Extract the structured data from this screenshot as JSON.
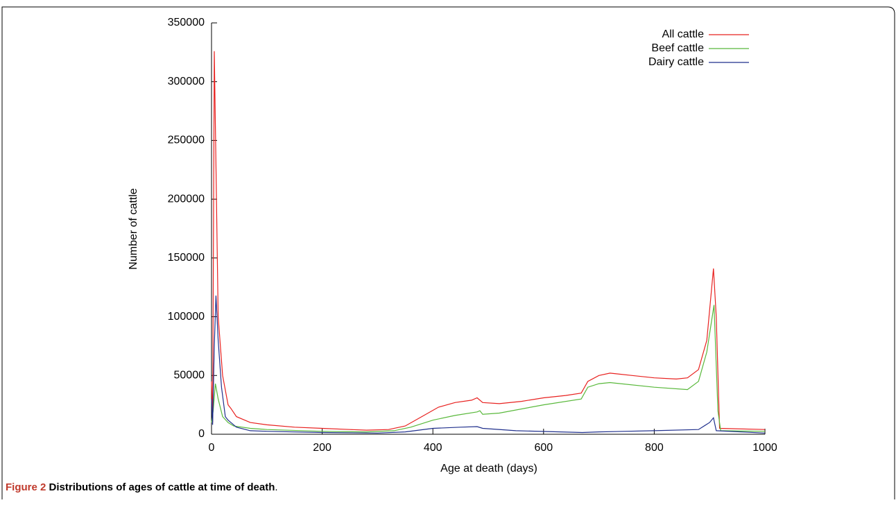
{
  "chart_data": {
    "type": "line",
    "xlabel": "Age at death (days)",
    "ylabel": "Number of cattle",
    "caption_label": "Figure 2",
    "caption_text": "Distributions of ages of cattle at time of death",
    "caption_end": ".",
    "xlim": [
      0,
      1000
    ],
    "ylim": [
      0,
      350000
    ],
    "xticks": [
      0,
      200,
      400,
      600,
      800,
      1000
    ],
    "yticks": [
      0,
      50000,
      100000,
      150000,
      200000,
      250000,
      300000,
      350000
    ],
    "legend": "upper right",
    "series": [
      {
        "name": "All cattle",
        "color": "#e8201e",
        "x": [
          0,
          2,
          5,
          12,
          20,
          30,
          35,
          45,
          70,
          100,
          150,
          200,
          250,
          280,
          320,
          350,
          380,
          410,
          440,
          470,
          480,
          490,
          520,
          560,
          600,
          640,
          668,
          680,
          700,
          720,
          760,
          800,
          840,
          860,
          880,
          895,
          907,
          912,
          918,
          1000
        ],
        "values": [
          45000,
          10000,
          326000,
          100000,
          50000,
          25000,
          22000,
          15000,
          10000,
          8000,
          6000,
          5000,
          4000,
          3500,
          4000,
          7000,
          15000,
          23000,
          27000,
          29000,
          31000,
          27000,
          26000,
          28000,
          31000,
          33000,
          35000,
          45000,
          50000,
          52000,
          50000,
          48000,
          47000,
          48000,
          55000,
          80000,
          141000,
          100000,
          5000,
          4000
        ]
      },
      {
        "name": "Beef cattle",
        "color": "#58b83a",
        "x": [
          0,
          3,
          7,
          12,
          20,
          30,
          40,
          70,
          100,
          200,
          280,
          330,
          360,
          400,
          440,
          480,
          485,
          490,
          520,
          600,
          668,
          680,
          700,
          720,
          800,
          860,
          880,
          895,
          908,
          915,
          920,
          1000
        ],
        "values": [
          10000,
          20000,
          43000,
          30000,
          15000,
          10000,
          7000,
          5000,
          4000,
          2500,
          2000,
          3000,
          6000,
          12000,
          16000,
          19000,
          20000,
          17000,
          18000,
          25000,
          30000,
          40000,
          43000,
          44000,
          40000,
          38000,
          45000,
          70000,
          110000,
          20000,
          3000,
          2500
        ]
      },
      {
        "name": "Dairy cattle",
        "color": "#1f2f8c",
        "x": [
          0,
          2,
          5,
          8,
          12,
          18,
          25,
          30,
          35,
          45,
          70,
          100,
          200,
          300,
          350,
          400,
          450,
          480,
          490,
          550,
          670,
          700,
          800,
          880,
          900,
          907,
          912,
          1000
        ],
        "values": [
          30000,
          8000,
          75000,
          118000,
          80000,
          40000,
          15000,
          12000,
          10000,
          6000,
          3000,
          2500,
          1500,
          1000,
          2000,
          5000,
          6000,
          6500,
          5000,
          3000,
          1500,
          2000,
          3000,
          4000,
          10000,
          14000,
          3000,
          1000
        ]
      }
    ]
  }
}
